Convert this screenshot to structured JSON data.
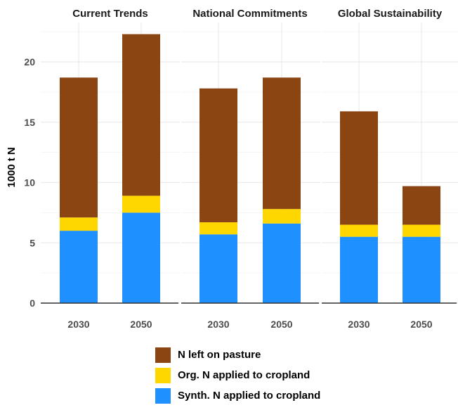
{
  "chart_data": {
    "type": "bar",
    "stacked": true,
    "ylabel": "1000 t N",
    "ylim": [
      0,
      23
    ],
    "yticks": [
      0,
      5,
      10,
      15,
      20
    ],
    "grid": true,
    "legend_position": "bottom",
    "facets": [
      {
        "title": "Current Trends",
        "categories": [
          "2030",
          "2050"
        ]
      },
      {
        "title": "National Commitments",
        "categories": [
          "2030",
          "2050"
        ]
      },
      {
        "title": "Global Sustainability",
        "categories": [
          "2030",
          "2050"
        ]
      }
    ],
    "series": [
      {
        "name": "Synth. N applied to cropland",
        "color": "#1E90FF",
        "values": [
          6.0,
          7.5,
          5.7,
          6.6,
          5.5,
          5.5
        ]
      },
      {
        "name": "Org. N applied to cropland",
        "color": "#FFD700",
        "values": [
          1.1,
          1.4,
          1.0,
          1.2,
          1.0,
          1.0
        ]
      },
      {
        "name": "N left on pasture",
        "color": "#8B4513",
        "values": [
          11.6,
          13.4,
          11.1,
          10.9,
          9.4,
          3.2
        ]
      }
    ]
  },
  "legend": [
    {
      "label": "N left on pasture",
      "color": "#8B4513"
    },
    {
      "label": "Org. N applied to cropland",
      "color": "#FFD700"
    },
    {
      "label": "Synth. N applied to cropland",
      "color": "#1E90FF"
    }
  ]
}
